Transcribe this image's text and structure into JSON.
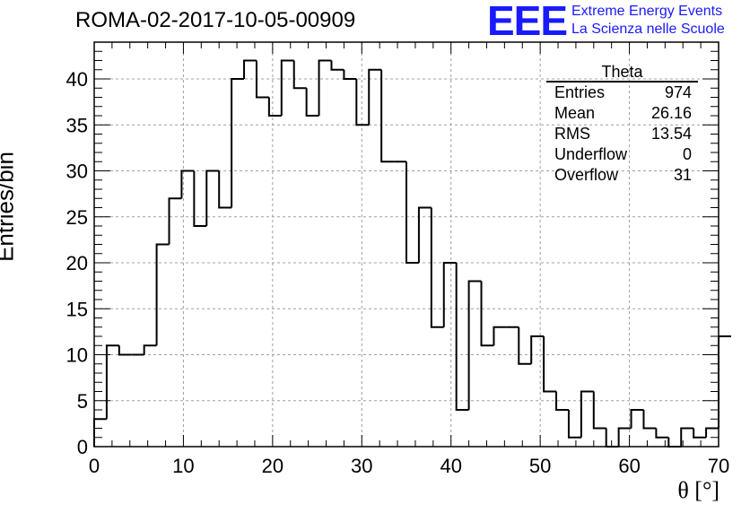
{
  "chart_data": {
    "type": "bar",
    "title": "ROMA-02-2017-10-05-00909",
    "xlabel": "θ [°]",
    "ylabel": "Entries/bin",
    "xlim": [
      0,
      70
    ],
    "ylim": [
      0,
      44
    ],
    "grid": true,
    "bin_width": 1.4,
    "values": [
      3,
      11,
      10,
      10,
      11,
      22,
      27,
      30,
      24,
      30,
      26,
      40,
      42,
      38,
      36,
      42,
      39,
      36,
      42,
      41,
      40,
      35,
      41,
      31,
      31,
      20,
      26,
      13,
      20,
      4,
      18,
      11,
      13,
      13,
      9,
      12,
      6,
      4,
      1,
      6,
      2,
      0,
      2,
      4,
      2,
      1,
      0,
      2,
      1,
      2,
      12
    ],
    "x_ticks": [
      "0",
      "10",
      "20",
      "30",
      "40",
      "50",
      "60",
      "70"
    ],
    "y_ticks": [
      "0",
      "5",
      "10",
      "15",
      "20",
      "25",
      "30",
      "35",
      "40"
    ],
    "stats": {
      "title": "Theta",
      "rows": [
        {
          "label": "Entries",
          "value": "974"
        },
        {
          "label": "Mean",
          "value": "26.16"
        },
        {
          "label": "RMS",
          "value": "13.54"
        },
        {
          "label": "Underflow",
          "value": "0"
        },
        {
          "label": "Overflow",
          "value": "31"
        }
      ]
    }
  },
  "logo": {
    "mark": "EEE",
    "line1": "Extreme Energy Events",
    "line2": "La Scienza nelle Scuole",
    "color": "#1a1aff"
  }
}
